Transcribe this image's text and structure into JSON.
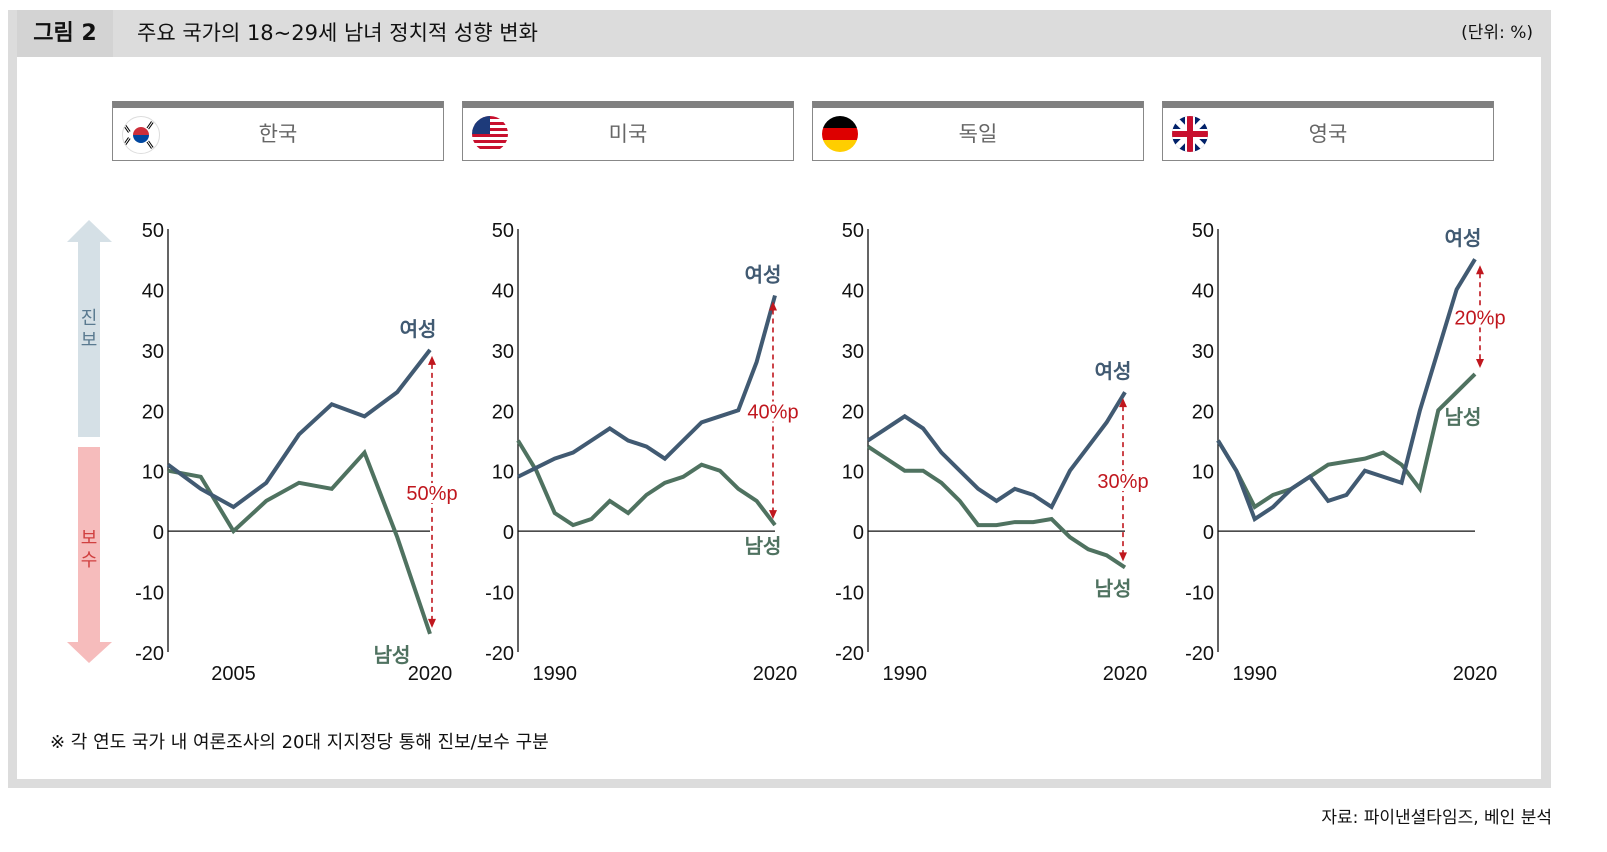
{
  "header": {
    "figure_label": "그림 2",
    "title": "주요 국가의 18~29세 남녀 정치적 성향 변화",
    "unit": "(단위: %)"
  },
  "side_axis": {
    "up_label": "진보",
    "down_label": "보수",
    "up_color": "#d5e0e6",
    "down_color": "#f6bcbc"
  },
  "footnote": "※ 각 연도 국가 내 여론조사의 20대 지지정당 통해 진보/보수 구분",
  "source": "자료: 파이낸셜타임즈, 베인 분석",
  "colors": {
    "women": "#415a72",
    "men": "#4f7260",
    "gap": "#c0171e"
  },
  "chart_data": [
    {
      "type": "line",
      "country": "한국",
      "flag": "korea-flag",
      "ylim": [
        -20,
        50
      ],
      "yticks": [
        50,
        40,
        30,
        20,
        10,
        0,
        -10,
        -20
      ],
      "xtick_labels": [
        {
          "index": 2,
          "label": "2005"
        },
        {
          "index": 8,
          "label": "2020"
        }
      ],
      "series": [
        {
          "name": "여성",
          "values": [
            11,
            7,
            4,
            8,
            16,
            21,
            19,
            23,
            30
          ]
        },
        {
          "name": "남성",
          "values": [
            10,
            9,
            0,
            5,
            8,
            7,
            13,
            -1,
            -17
          ]
        }
      ],
      "gap_label": "50%p"
    },
    {
      "type": "line",
      "country": "미국",
      "flag": "us-flag",
      "ylim": [
        -20,
        50
      ],
      "yticks": [
        50,
        40,
        30,
        20,
        10,
        0,
        -10,
        -20
      ],
      "xtick_labels": [
        {
          "index": 2,
          "label": "1990"
        },
        {
          "index": 14,
          "label": "2020"
        }
      ],
      "series": [
        {
          "name": "여성",
          "values": [
            9,
            10.5,
            12,
            13,
            15,
            17,
            15,
            14,
            12,
            15,
            18,
            19,
            20,
            28,
            39
          ]
        },
        {
          "name": "남성",
          "values": [
            15,
            10,
            3,
            1,
            2,
            5,
            3,
            6,
            8,
            9,
            11,
            10,
            7,
            5,
            1
          ]
        }
      ],
      "gap_label": "40%p"
    },
    {
      "type": "line",
      "country": "독일",
      "flag": "germany-flag",
      "ylim": [
        -20,
        50
      ],
      "yticks": [
        50,
        40,
        30,
        20,
        10,
        0,
        -10,
        -20
      ],
      "xtick_labels": [
        {
          "index": 2,
          "label": "1990"
        },
        {
          "index": 14,
          "label": "2020"
        }
      ],
      "series": [
        {
          "name": "여성",
          "values": [
            15,
            17,
            19,
            17,
            13,
            10,
            7,
            5,
            7,
            6,
            4,
            10,
            14,
            18,
            23
          ]
        },
        {
          "name": "남성",
          "values": [
            14,
            12,
            10,
            10,
            8,
            5,
            1,
            1,
            1.5,
            1.5,
            2,
            -1,
            -3,
            -4,
            -6
          ]
        }
      ],
      "gap_label": "30%p"
    },
    {
      "type": "line",
      "country": "영국",
      "flag": "uk-flag",
      "ylim": [
        -20,
        50
      ],
      "yticks": [
        50,
        40,
        30,
        20,
        10,
        0,
        -10,
        -20
      ],
      "xtick_labels": [
        {
          "index": 2,
          "label": "1990"
        },
        {
          "index": 14,
          "label": "2020"
        }
      ],
      "series": [
        {
          "name": "여성",
          "values": [
            15,
            10,
            2,
            4,
            7,
            9,
            5,
            6,
            10,
            9,
            8,
            20,
            30,
            40,
            45
          ]
        },
        {
          "name": "남성",
          "values": [
            15,
            10,
            4,
            6,
            7,
            9,
            11,
            11.5,
            12,
            13,
            11,
            7,
            20,
            23,
            26
          ]
        }
      ],
      "gap_label": "20%p"
    }
  ]
}
